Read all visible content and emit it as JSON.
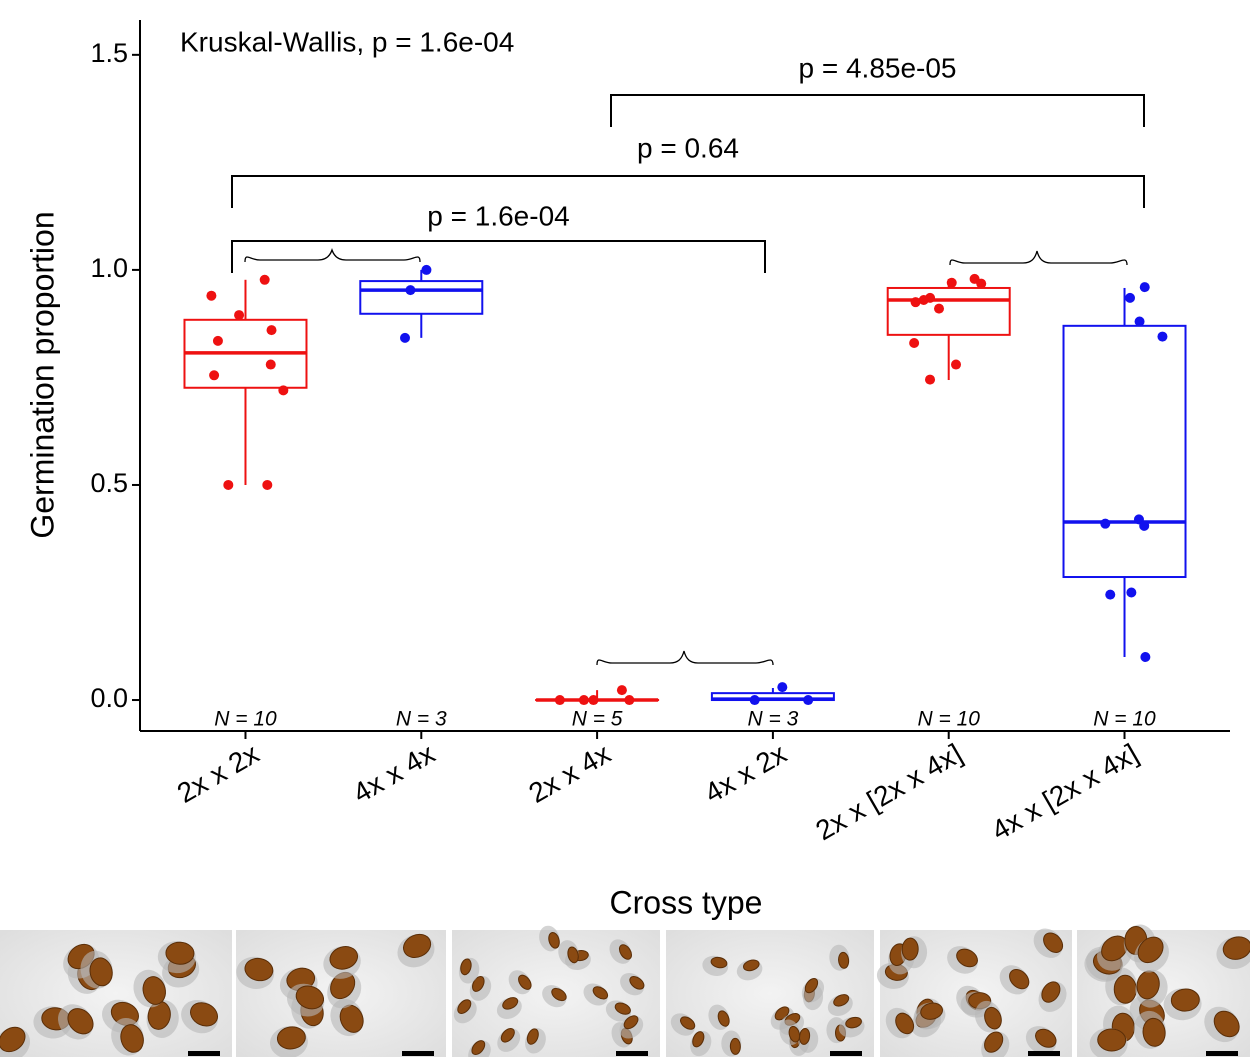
{
  "chart_data": {
    "type": "box",
    "annotations": [
      "Kruskal-Wallis, p = 1.6e-04",
      "p = 4.85e-05",
      "p = 0.64",
      "p = 1.6e-04"
    ],
    "y_label": "Germination proportion",
    "x_label": "Cross type",
    "categories": [
      "2x x 2x",
      "4x x 4x",
      "2x x 4x",
      "4x x 2x",
      "2x x [2x x 4x]",
      "4x x [2x x 4x]"
    ],
    "n_labels": [
      "N = 10",
      "N = 3",
      "N = 5",
      "N = 3",
      "N = 10",
      "N = 10"
    ],
    "ylim": [
      -0.072,
      1.581
    ],
    "yticks": [
      {
        "value": 0,
        "label": "0.0"
      },
      0.5,
      {
        "value": 1,
        "label": "1.0"
      },
      1.5
    ],
    "boxes": [
      {
        "color": "#ee1111",
        "min": 0.5,
        "q1": 0.726,
        "median": 0.807,
        "q3": 0.884,
        "max": 0.977,
        "points": [
          0.977,
          0.94,
          0.895,
          0.86,
          0.835,
          0.78,
          0.755,
          0.72,
          0.5,
          0.5
        ]
      },
      {
        "color": "#1111ee",
        "min": 0.842,
        "q1": 0.898,
        "median": 0.953,
        "q3": 0.974,
        "max": 1.0,
        "points": [
          1.0,
          0.953,
          0.842
        ]
      },
      {
        "color": "#ee1111",
        "min": 0,
        "q1": 0,
        "median": 0,
        "q3": 0,
        "max": 0.023,
        "points": [
          0,
          0,
          0,
          0,
          0.023
        ]
      },
      {
        "color": "#1111ee",
        "min": 0,
        "q1": 0,
        "median": 0.002,
        "q3": 0.016,
        "max": 0.028,
        "points": [
          0,
          0,
          0.03
        ]
      },
      {
        "color": "#ee1111",
        "min": 0.744,
        "q1": 0.849,
        "median": 0.93,
        "q3": 0.958,
        "max": 0.979,
        "points": [
          0.979,
          0.97,
          0.968,
          0.935,
          0.93,
          0.925,
          0.91,
          0.83,
          0.78,
          0.745
        ]
      },
      {
        "color": "#1111ee",
        "min": 0.1,
        "q1": 0.286,
        "median": 0.414,
        "q3": 0.87,
        "max": 0.958,
        "points": [
          0.96,
          0.935,
          0.88,
          0.845,
          0.42,
          0.41,
          0.405,
          0.25,
          0.245,
          0.1
        ]
      }
    ]
  }
}
